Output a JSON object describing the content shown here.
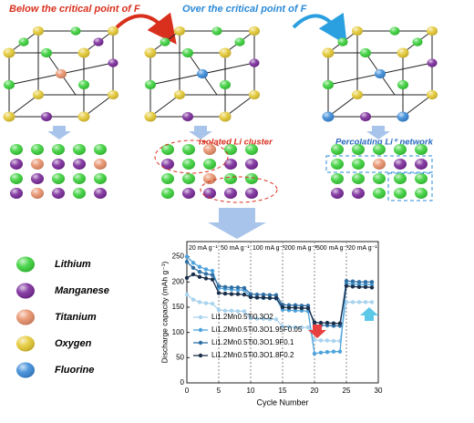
{
  "labels": {
    "below": "Below the critical point of F",
    "over": "Over the critical point of F",
    "isolated": "Isolated Li cluster",
    "percolating": "Percolating Li⁺ network"
  },
  "legend": {
    "items": [
      {
        "name": "Lithium",
        "color": "#3ad13a"
      },
      {
        "name": "Manganese",
        "color": "#7a2a9a"
      },
      {
        "name": "Titanium",
        "color": "#e8906a"
      },
      {
        "name": "Oxygen",
        "color": "#e4c832"
      },
      {
        "name": "Fluorine",
        "color": "#3a8ad8"
      }
    ]
  },
  "chart_data": {
    "type": "line",
    "xlabel": "Cycle Number",
    "ylabel": "Discharge capacity (mAh g⁻¹)",
    "rate_labels": [
      "20 mA g⁻¹",
      "50 mA g⁻¹",
      "100 mA g⁻¹",
      "200 mA g⁻¹",
      "500 mA g⁻¹",
      "20 mA g⁻¹"
    ],
    "x": [
      0,
      1,
      2,
      3,
      4,
      5,
      6,
      7,
      8,
      9,
      10,
      11,
      12,
      13,
      14,
      15,
      16,
      17,
      18,
      19,
      20,
      21,
      22,
      23,
      24,
      25,
      26,
      27,
      28,
      29
    ],
    "xlim": [
      0,
      30
    ],
    "xticks": [
      0,
      5,
      10,
      15,
      20,
      25,
      30
    ],
    "ylim": [
      0,
      280
    ],
    "yticks": [
      0,
      50,
      100,
      150,
      200,
      250
    ],
    "series": [
      {
        "name": "Li1.2Mn0.5Ti0.3O2",
        "color": "#a9d3ee",
        "values": [
          175,
          165,
          160,
          158,
          157,
          145,
          143,
          143,
          142,
          142,
          128,
          127,
          127,
          126,
          126,
          112,
          111,
          110,
          110,
          110,
          85,
          84,
          84,
          83,
          83,
          160,
          160,
          160,
          160,
          160
        ]
      },
      {
        "name": "Li1.2Mn0.5Ti0.3O1.95F0.05",
        "color": "#4ea3dc",
        "values": [
          250,
          238,
          230,
          225,
          222,
          188,
          186,
          185,
          184,
          184,
          170,
          169,
          168,
          168,
          167,
          145,
          144,
          143,
          143,
          142,
          58,
          60,
          61,
          62,
          62,
          197,
          196,
          195,
          195,
          195
        ]
      },
      {
        "name": "Li1.2Mn0.5Ti0.3O1.9F0.1",
        "color": "#2f6fa5",
        "values": [
          240,
          228,
          220,
          216,
          214,
          192,
          190,
          189,
          189,
          188,
          176,
          175,
          175,
          174,
          174,
          155,
          154,
          154,
          153,
          153,
          115,
          114,
          114,
          113,
          113,
          202,
          201,
          200,
          200,
          200
        ]
      },
      {
        "name": "Li1.2Mn0.5Ti0.3O1.8F0.2",
        "color": "#1a2f4a",
        "values": [
          208,
          215,
          210,
          207,
          205,
          178,
          177,
          176,
          176,
          175,
          170,
          169,
          169,
          168,
          168,
          150,
          149,
          149,
          148,
          148,
          120,
          119,
          119,
          118,
          118,
          192,
          191,
          190,
          190,
          189
        ]
      }
    ]
  }
}
